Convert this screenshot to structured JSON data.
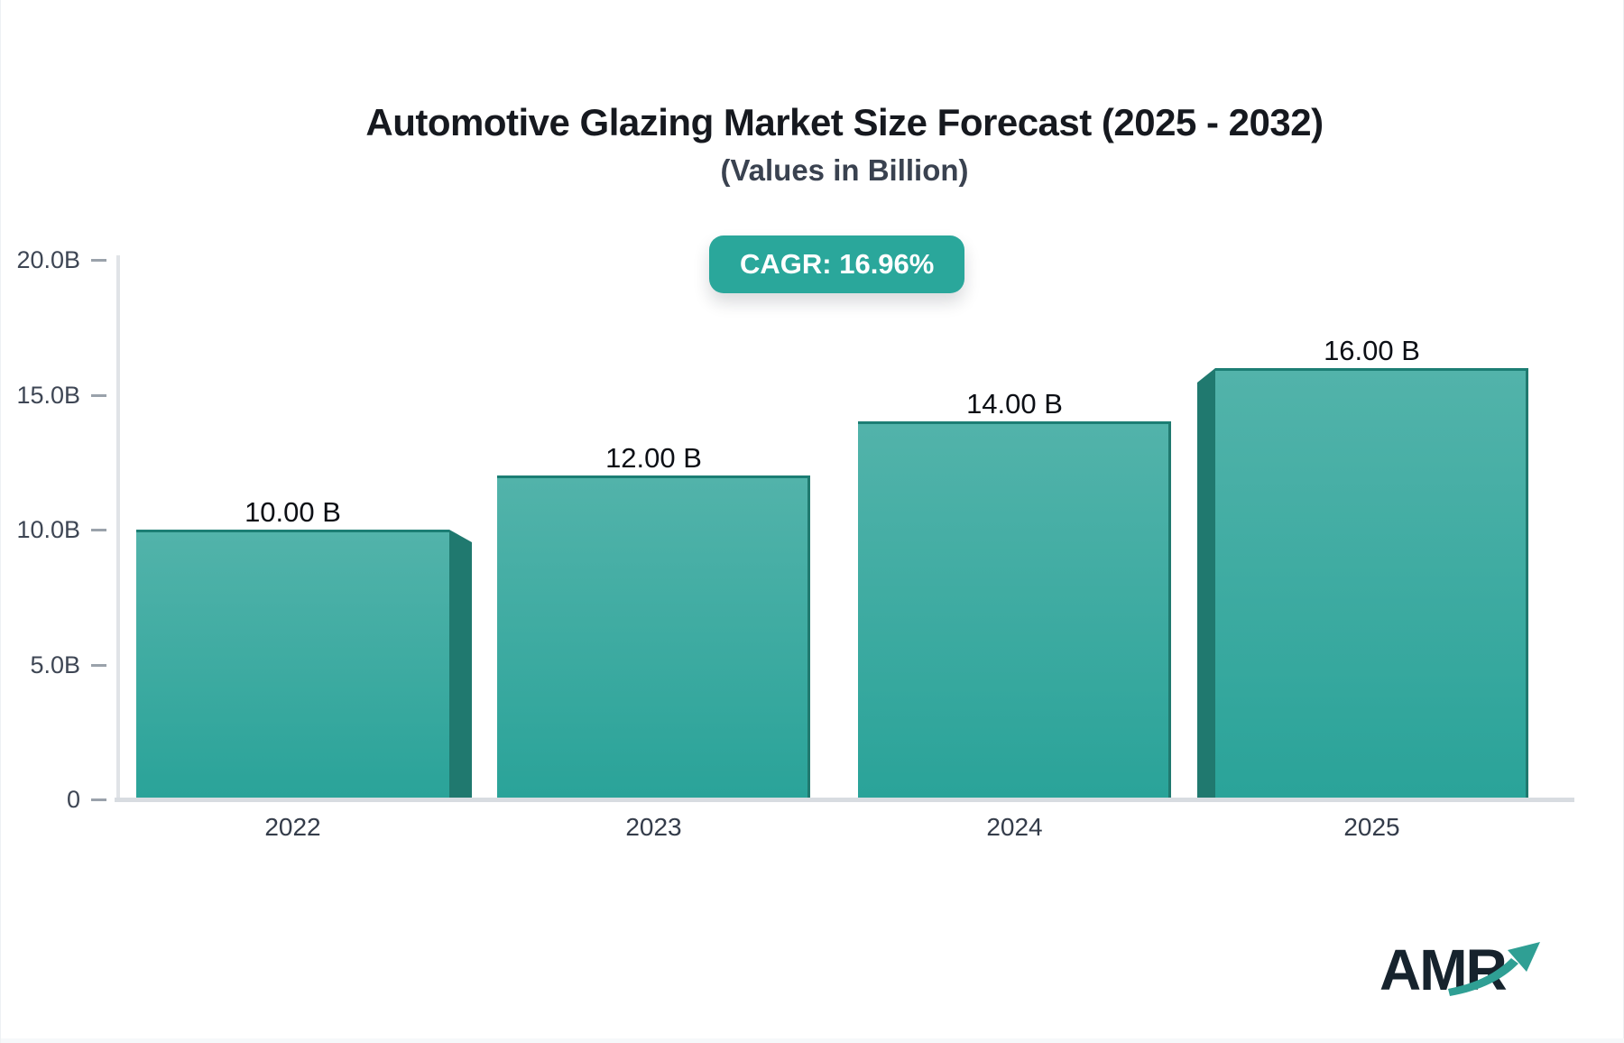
{
  "header": {
    "title": "Automotive Glazing Market Size Forecast (2025 - 2032)",
    "subtitle": "(Values in Billion)",
    "cagr_badge": "CAGR: 16.96%"
  },
  "chart_data": {
    "type": "bar",
    "title": "Automotive Glazing Market Size Forecast (2025 - 2032)",
    "subtitle": "(Values in Billion)",
    "categories": [
      "2022",
      "2023",
      "2024",
      "2025"
    ],
    "values": [
      10,
      12,
      14,
      16
    ],
    "value_labels": [
      "10.00 B",
      "12.00 B",
      "14.00 B",
      "16.00 B"
    ],
    "xlabel": "",
    "ylabel": "",
    "ylim": [
      0,
      20
    ],
    "y_tick_values": [
      0,
      5,
      10,
      15,
      20
    ],
    "y_tick_labels": [
      "0",
      "5.0B",
      "10.0B",
      "15.0B",
      "20.0B"
    ],
    "grid": false,
    "legend": "none",
    "annotations": [
      "CAGR: 16.96%"
    ]
  },
  "colors": {
    "bar_face_top": "#52b3aa",
    "bar_face_bottom": "#2aa399",
    "bar_side": "#20796f",
    "bar_top_edge": "#1c7e74",
    "badge_bg": "#2aa79b",
    "axis_line": "#d8dce1",
    "tick_text": "#3e4654",
    "logo_text_color": "#16232d",
    "logo_arrow_color": "#2f9f94"
  },
  "branding": {
    "logo_text": "AMR"
  }
}
